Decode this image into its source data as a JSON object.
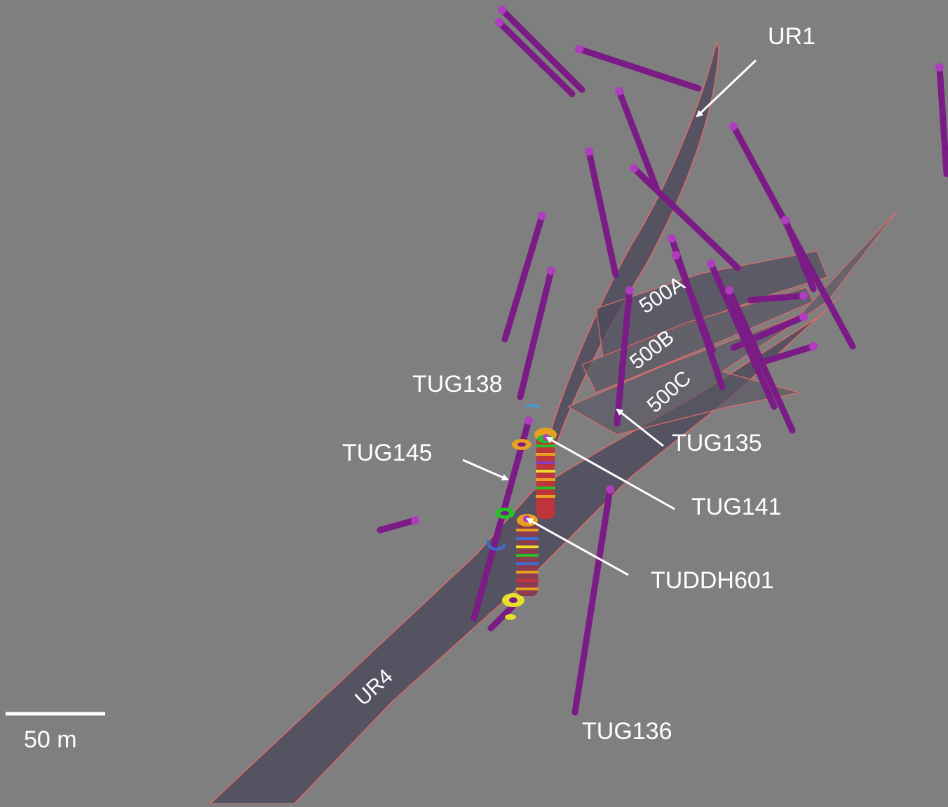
{
  "colors": {
    "background": "#7f7f7f",
    "drillhole": "#7b1b86",
    "drillhole_tip": "#b03cc0",
    "vein_fill": "#4d4a5c",
    "vein_edge": "#e06a6a",
    "label": "#ffffff"
  },
  "veins": {
    "ur1": "UR1",
    "ur4": "UR4",
    "v500a": "500A",
    "v500b": "500B",
    "v500c": "500C"
  },
  "drillholes": {
    "tug138": "TUG138",
    "tug145": "TUG145",
    "tug135": "TUG135",
    "tug141": "TUG141",
    "tuddh601": "TUDDH601",
    "tug136": "TUG136"
  },
  "scale_bar": {
    "label": "50 m"
  }
}
